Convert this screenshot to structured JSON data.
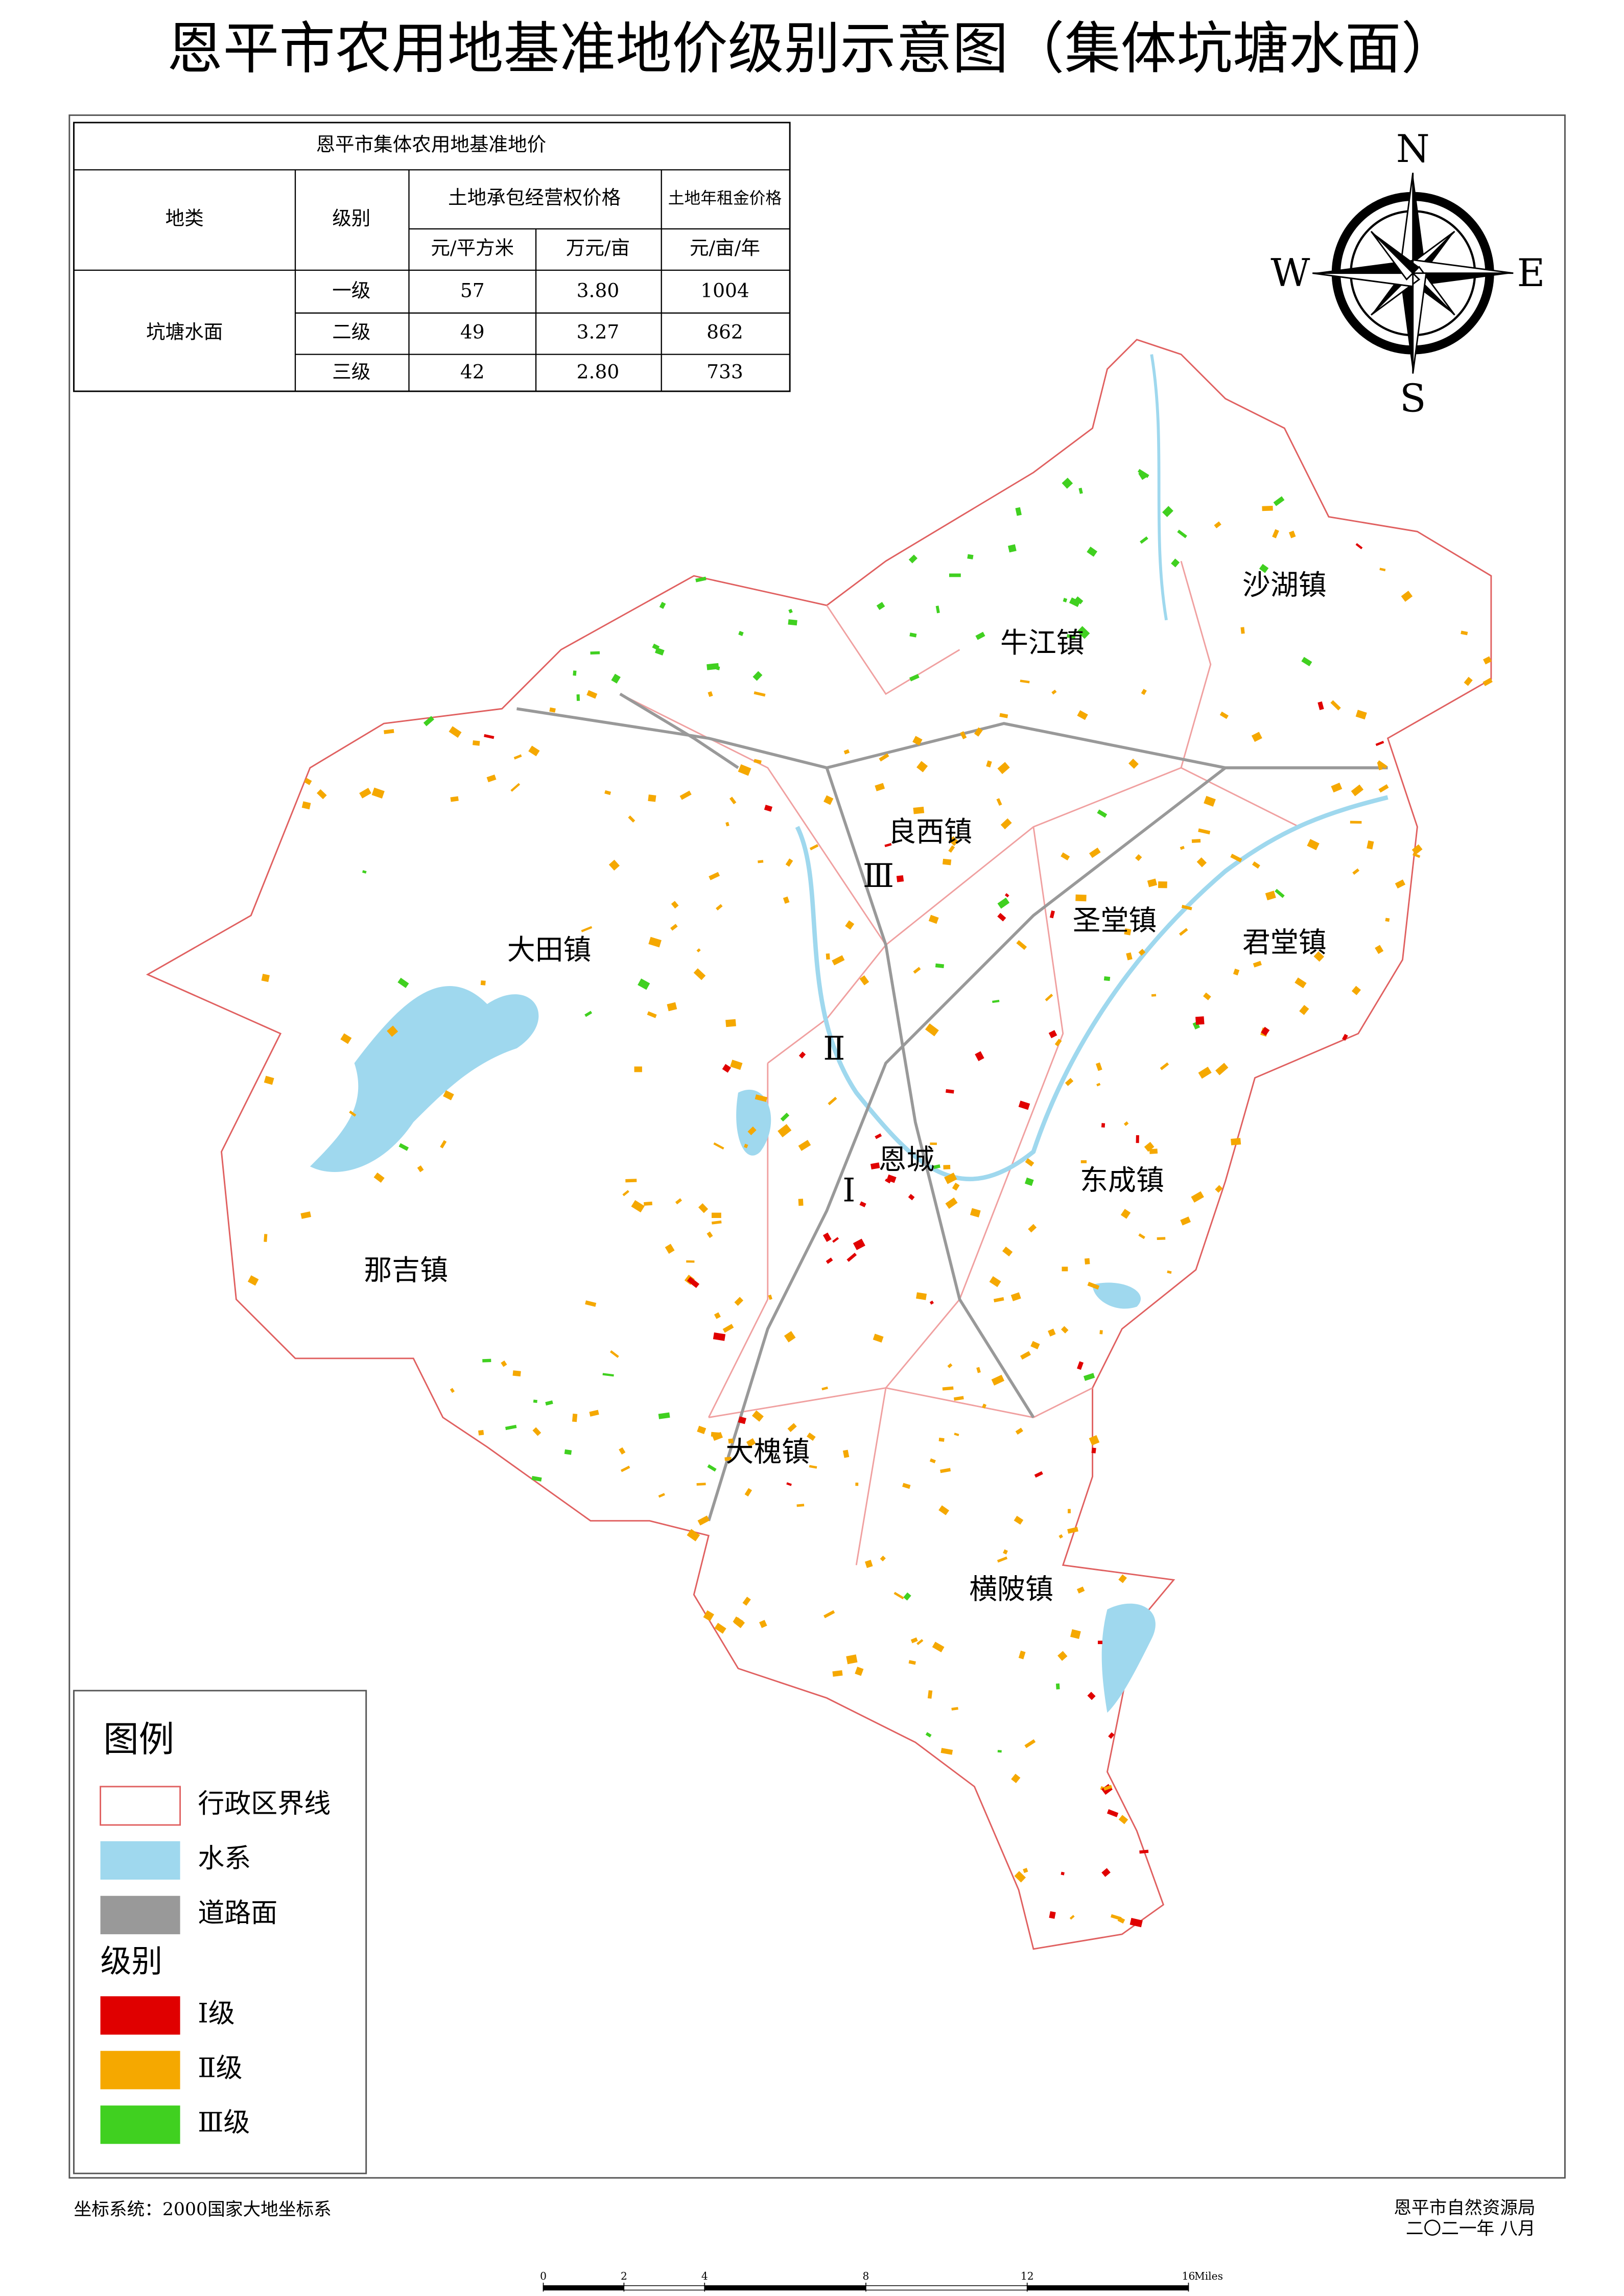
{
  "title": "恩平市农用地基准地价级别示意图（集体坑塘水面）",
  "table": {
    "title": "恩平市集体农用地基准地价",
    "headers": [
      "地类",
      "级别",
      "土地承包经营权价格",
      "土地年租金价格"
    ],
    "units": [
      "元/平方米",
      "万元/亩",
      "元/亩/年"
    ],
    "land_type": "坑塘水面",
    "rows": [
      [
        "一级",
        "57",
        "3.80",
        "1004"
      ],
      [
        "二级",
        "49",
        "3.27",
        "862"
      ],
      [
        "三级",
        "42",
        "2.80",
        "733"
      ]
    ]
  },
  "compass": [
    "N",
    "E",
    "S",
    "W"
  ],
  "places": [
    "沙湖镇",
    "牛江镇",
    "良西镇",
    "圣堂镇",
    "君堂镇",
    "大田镇",
    "恩城",
    "东成镇",
    "那吉镇",
    "大槐镇",
    "横陂镇"
  ],
  "zones": [
    "Ⅰ",
    "Ⅱ",
    "Ⅲ"
  ],
  "legend": {
    "title": "图例",
    "items": [
      "行政区界线",
      "水系",
      "道路面"
    ],
    "grade_title": "级别",
    "grades": [
      "Ⅰ级",
      "Ⅱ级",
      "Ⅲ级"
    ]
  },
  "footer": {
    "coords": "坐标系统：2000国家大地坐标系",
    "org": "恩平市自然资源局",
    "date": "二〇二一年  八月"
  },
  "scale_bar": {
    "ticks": [
      0,
      2,
      4,
      8,
      12,
      16
    ],
    "unit": "Miles"
  }
}
